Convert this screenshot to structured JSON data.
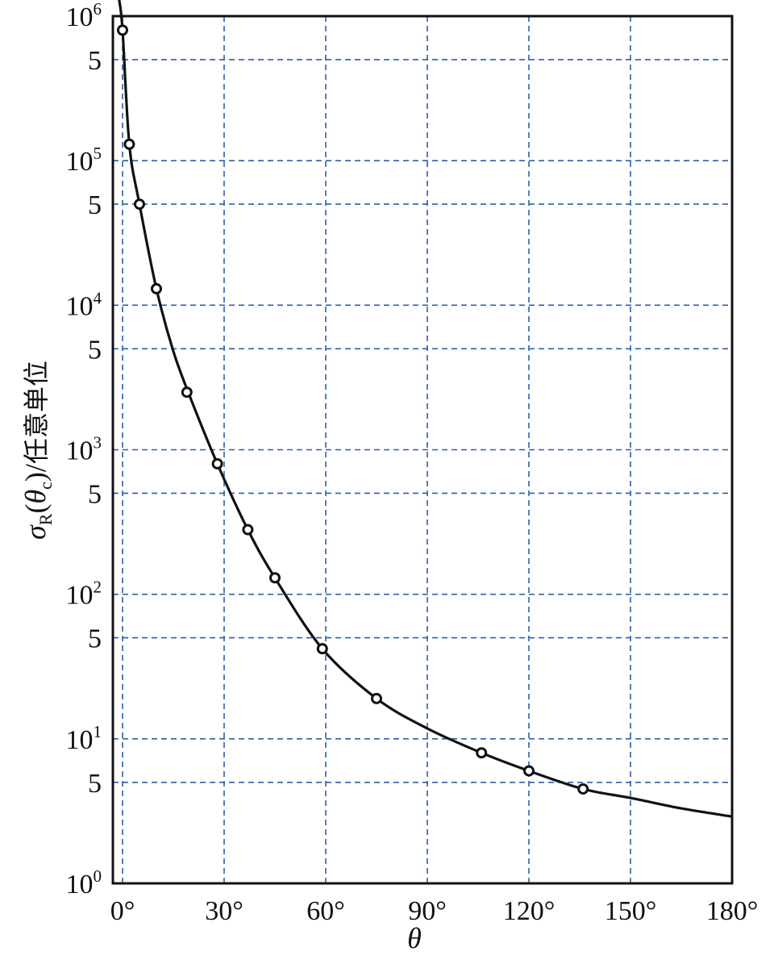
{
  "colors": {
    "grid": "#2f5fa8",
    "curve": "#111111",
    "frame": "#111111",
    "background": "#ffffff"
  },
  "chart_data": {
    "type": "scatter",
    "title": "",
    "xlabel": "θ",
    "ylabel": {
      "sigma": "σ",
      "sub_R": "R",
      "open": "(",
      "theta": "θ",
      "sub_c": "c",
      "close": ")",
      "slash": "/",
      "unit": "任意单位"
    },
    "xlim": [
      -5,
      180
    ],
    "ylim": [
      1,
      1000000
    ],
    "y_scale": "log",
    "grid": true,
    "grid_style": "dashed",
    "x_ticks": [
      {
        "value": 0,
        "label": "0°"
      },
      {
        "value": 30,
        "label": "30°"
      },
      {
        "value": 60,
        "label": "60°"
      },
      {
        "value": 90,
        "label": "90°"
      },
      {
        "value": 120,
        "label": "120°"
      },
      {
        "value": 150,
        "label": "150°"
      },
      {
        "value": 180,
        "label": "180°"
      }
    ],
    "y_ticks": [
      {
        "value": 1,
        "base": "10",
        "exp": "0"
      },
      {
        "value": 5,
        "base": "5",
        "exp": ""
      },
      {
        "value": 10,
        "base": "10",
        "exp": "1"
      },
      {
        "value": 50,
        "base": "5",
        "exp": ""
      },
      {
        "value": 100,
        "base": "10",
        "exp": "2"
      },
      {
        "value": 500,
        "base": "5",
        "exp": ""
      },
      {
        "value": 1000,
        "base": "10",
        "exp": "3"
      },
      {
        "value": 5000,
        "base": "5",
        "exp": ""
      },
      {
        "value": 10000,
        "base": "10",
        "exp": "4"
      },
      {
        "value": 50000,
        "base": "5",
        "exp": ""
      },
      {
        "value": 100000,
        "base": "10",
        "exp": "5"
      },
      {
        "value": 500000,
        "base": "5",
        "exp": ""
      },
      {
        "value": 1000000,
        "base": "10",
        "exp": "6"
      }
    ],
    "series": [
      {
        "kind": "points",
        "marker": "open-circle",
        "x": [
          0,
          2,
          5,
          10,
          19,
          28,
          37,
          45,
          59,
          75,
          106,
          120,
          136
        ],
        "y": [
          800000,
          130000,
          50000,
          13000,
          2500,
          800,
          280,
          130,
          42,
          19,
          8,
          6,
          4.5
        ]
      },
      {
        "kind": "line",
        "curve": "theory",
        "x": [
          -1,
          0,
          2,
          5,
          10,
          15,
          20,
          28,
          37,
          45,
          59,
          75,
          90,
          106,
          120,
          136,
          150,
          165,
          180
        ],
        "y": [
          1300000,
          800000,
          130000,
          50000,
          13000,
          4800,
          2300,
          800,
          280,
          130,
          42,
          19,
          11.8,
          8,
          6,
          4.5,
          3.9,
          3.3,
          2.9
        ]
      }
    ]
  }
}
